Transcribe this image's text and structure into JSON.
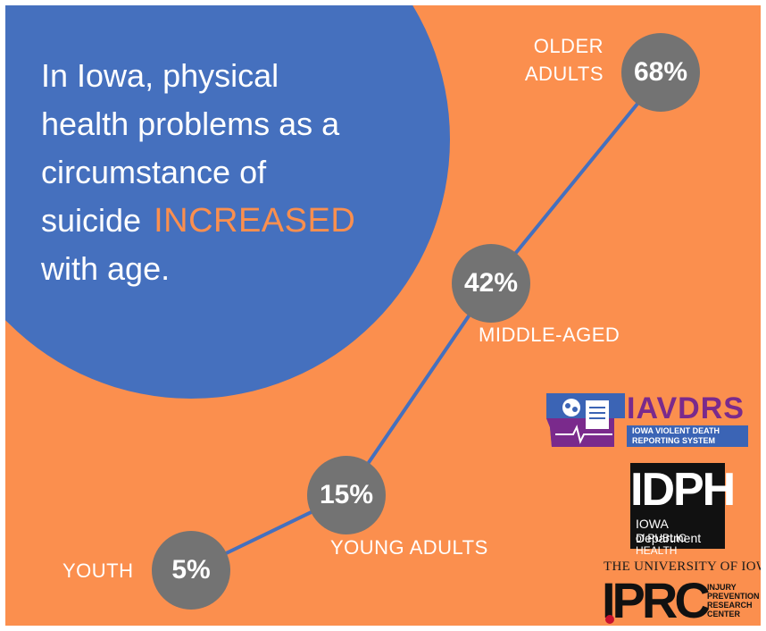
{
  "headline": {
    "line1": "In Iowa, physical",
    "line2": "health problems as a",
    "line3": "circumstance of",
    "line4_prefix": "suicide",
    "line4_accent": "INCREASED",
    "line5": "with age."
  },
  "age_groups": [
    {
      "label": "YOUTH",
      "value": "5%"
    },
    {
      "label": "YOUNG ADULTS",
      "value": "15%"
    },
    {
      "label": "MIDDLE-AGED",
      "value": "42%"
    },
    {
      "label_line1": "OLDER",
      "label_line2": "ADULTS",
      "value": "68%"
    }
  ],
  "logos": {
    "iavdrs": {
      "name": "IAVDRS",
      "sub1": "IOWA VIOLENT DEATH",
      "sub2": "REPORTING SYSTEM"
    },
    "idph": {
      "name": "IDPH",
      "line1": "IOWA Department",
      "line2": "of PUBLIC HEALTH"
    },
    "iprc": {
      "university": "THE UNIVERSITY OF IOWA",
      "name": "IPRC",
      "sub1": "INJURY",
      "sub2": "PREVENTION",
      "sub3": "RESEARCH",
      "sub4": "CENTER"
    }
  },
  "colors": {
    "background": "#fb8f4e",
    "circle": "#4570be",
    "bubble": "#737373",
    "accent": "#fb8f4e",
    "line": "#4570be"
  }
}
